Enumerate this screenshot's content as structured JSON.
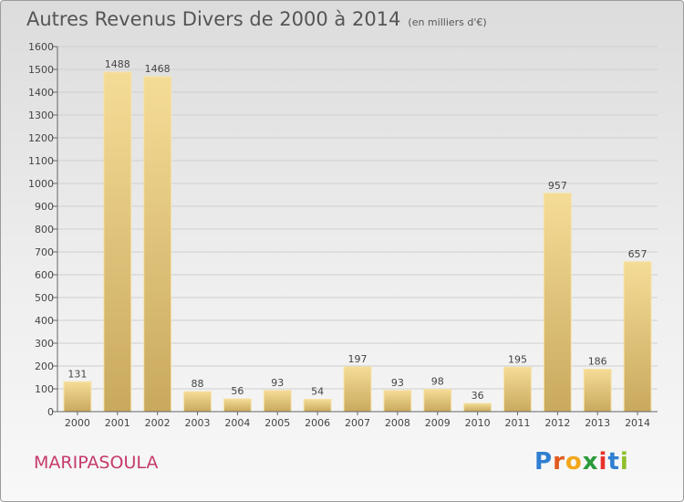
{
  "header": {
    "title": "Autres Revenus Divers de 2000 à 2014",
    "subtitle": "(en milliers d'€)"
  },
  "footer": {
    "commune": "MARIPASOULA",
    "logo": "Proxiti"
  },
  "colors": {
    "bar_light": "#f5dc96",
    "bar_dark": "#c9a95e",
    "commune": "#c53a6c",
    "logo_letters": [
      "#2f7fd1",
      "#e05a1e",
      "#f2a71b",
      "#2a9a3a",
      "#e8322b",
      "#2f7fd1",
      "#8fbf2a"
    ]
  },
  "chart_data": {
    "type": "bar",
    "title": "Autres Revenus Divers de 2000 à 2014",
    "subtitle": "(en milliers d'€)",
    "categories": [
      "2000",
      "2001",
      "2002",
      "2003",
      "2004",
      "2005",
      "2006",
      "2007",
      "2008",
      "2009",
      "2010",
      "2011",
      "2012",
      "2013",
      "2014"
    ],
    "values": [
      131,
      1488,
      1468,
      88,
      56,
      93,
      54,
      197,
      93,
      98,
      36,
      195,
      957,
      186,
      657
    ],
    "ylim": [
      0,
      1600
    ],
    "yticks": [
      0,
      100,
      200,
      300,
      400,
      500,
      600,
      700,
      800,
      900,
      1000,
      1100,
      1200,
      1300,
      1400,
      1500,
      1600
    ],
    "grid": true,
    "data_labels": true
  }
}
